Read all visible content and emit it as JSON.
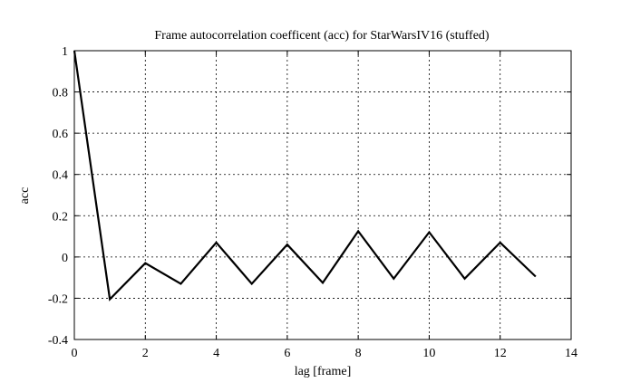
{
  "chart_data": {
    "type": "line",
    "title": "Frame autocorrelation coefficent (acc) for StarWarsIV16 (stuffed)",
    "xlabel": "lag [frame]",
    "ylabel": "acc",
    "xlim": [
      0,
      14
    ],
    "ylim": [
      -0.4,
      1
    ],
    "xticks": [
      "0",
      "2",
      "4",
      "6",
      "8",
      "10",
      "12",
      "14"
    ],
    "yticks": [
      "-0.4",
      "-0.2",
      "0",
      "0.2",
      "0.4",
      "0.6",
      "0.8",
      "1"
    ],
    "grid": true,
    "series": [
      {
        "color": "#000000",
        "x": [
          0,
          1,
          2,
          3,
          4,
          5,
          6,
          7,
          8,
          9,
          10,
          11,
          12,
          13
        ],
        "y": [
          1.0,
          -0.205,
          -0.03,
          -0.13,
          0.07,
          -0.13,
          0.06,
          -0.125,
          0.125,
          -0.105,
          0.12,
          -0.105,
          0.07,
          -0.095
        ]
      }
    ]
  }
}
